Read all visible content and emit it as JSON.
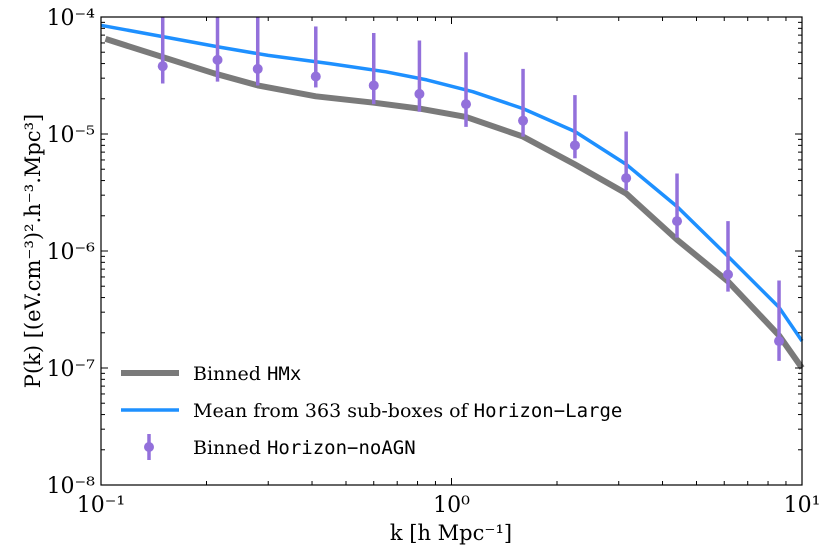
{
  "chart_data": {
    "type": "line",
    "xscale": "log",
    "yscale": "log",
    "xlim": [
      0.1,
      10
    ],
    "ylim": [
      1e-08,
      0.0001
    ],
    "xlabel": "k [h Mpc⁻¹]",
    "ylabel": "P(k) [(eV.cm⁻³)².h⁻³.Mpc³]",
    "xticks": [
      {
        "value": 0.1,
        "label": "10⁻¹"
      },
      {
        "value": 1,
        "label": "10⁰"
      },
      {
        "value": 10,
        "label": "10¹"
      }
    ],
    "yticks": [
      {
        "value": 1e-08,
        "label": "10⁻⁸"
      },
      {
        "value": 1e-07,
        "label": "10⁻⁷"
      },
      {
        "value": 1e-06,
        "label": "10⁻⁶"
      },
      {
        "value": 1e-05,
        "label": "10⁻⁵"
      },
      {
        "value": 0.0001,
        "label": "10⁻⁴"
      }
    ],
    "legend_position": "lower-left",
    "series": [
      {
        "name": "Binned HMx",
        "legend_prefix": "Binned ",
        "legend_code": "HMx",
        "legend_suffix": "",
        "style": "line",
        "color": "#7a7a7a",
        "x": [
          0.103,
          0.21,
          0.28,
          0.41,
          0.6,
          0.81,
          1.1,
          1.6,
          2.25,
          3.15,
          4.4,
          6.15,
          8.6,
          10
        ],
        "y": [
          6.5e-05,
          3.3e-05,
          2.6e-05,
          2.1e-05,
          1.85e-05,
          1.65e-05,
          1.4e-05,
          9.5e-06,
          5.5e-06,
          3.1e-06,
          1.25e-06,
          5.5e-07,
          1.9e-07,
          1e-07
        ]
      },
      {
        "name": "Mean from 363 sub-boxes of Horizon-Large",
        "legend_prefix": "Mean from 363 sub-boxes of ",
        "legend_code": "Horizon−Large",
        "legend_suffix": "",
        "style": "line",
        "color": "#1e90ff",
        "x": [
          0.1,
          0.15,
          0.22,
          0.3,
          0.45,
          0.65,
          0.85,
          1.15,
          1.6,
          2.25,
          3.15,
          4.4,
          6.15,
          8.6,
          10
        ],
        "y": [
          8.5e-05,
          6.8e-05,
          5.5e-05,
          4.7e-05,
          4e-05,
          3.4e-05,
          2.9e-05,
          2.3e-05,
          1.65e-05,
          1.05e-05,
          5.5e-06,
          2.4e-06,
          9e-07,
          3.3e-07,
          1.7e-07
        ]
      },
      {
        "name": "Binned Horizon-noAGN",
        "legend_prefix": "Binned ",
        "legend_code": "Horizon−noAGN",
        "legend_suffix": "",
        "style": "errorbar",
        "color": "#9370db",
        "x": [
          0.15,
          0.215,
          0.28,
          0.41,
          0.6,
          0.81,
          1.1,
          1.6,
          2.25,
          3.15,
          4.4,
          6.15,
          8.6
        ],
        "y": [
          3.8e-05,
          4.3e-05,
          3.6e-05,
          3.1e-05,
          2.6e-05,
          2.2e-05,
          1.8e-05,
          1.3e-05,
          8e-06,
          4.2e-06,
          1.8e-06,
          6.3e-07,
          1.7e-07
        ],
        "y_low": [
          2.7e-05,
          2.8e-05,
          2.6e-05,
          2.5e-05,
          1.8e-05,
          1.55e-05,
          1.15e-05,
          9.5e-06,
          6.2e-06,
          3.3e-06,
          1.3e-06,
          4.5e-07,
          1.15e-07
        ],
        "y_high": [
          0.0001,
          0.0001,
          0.0001,
          8.3e-05,
          7.3e-05,
          6.3e-05,
          5e-05,
          3.6e-05,
          2.15e-05,
          1.05e-05,
          4.6e-06,
          1.8e-06,
          5.6e-07
        ]
      }
    ]
  }
}
